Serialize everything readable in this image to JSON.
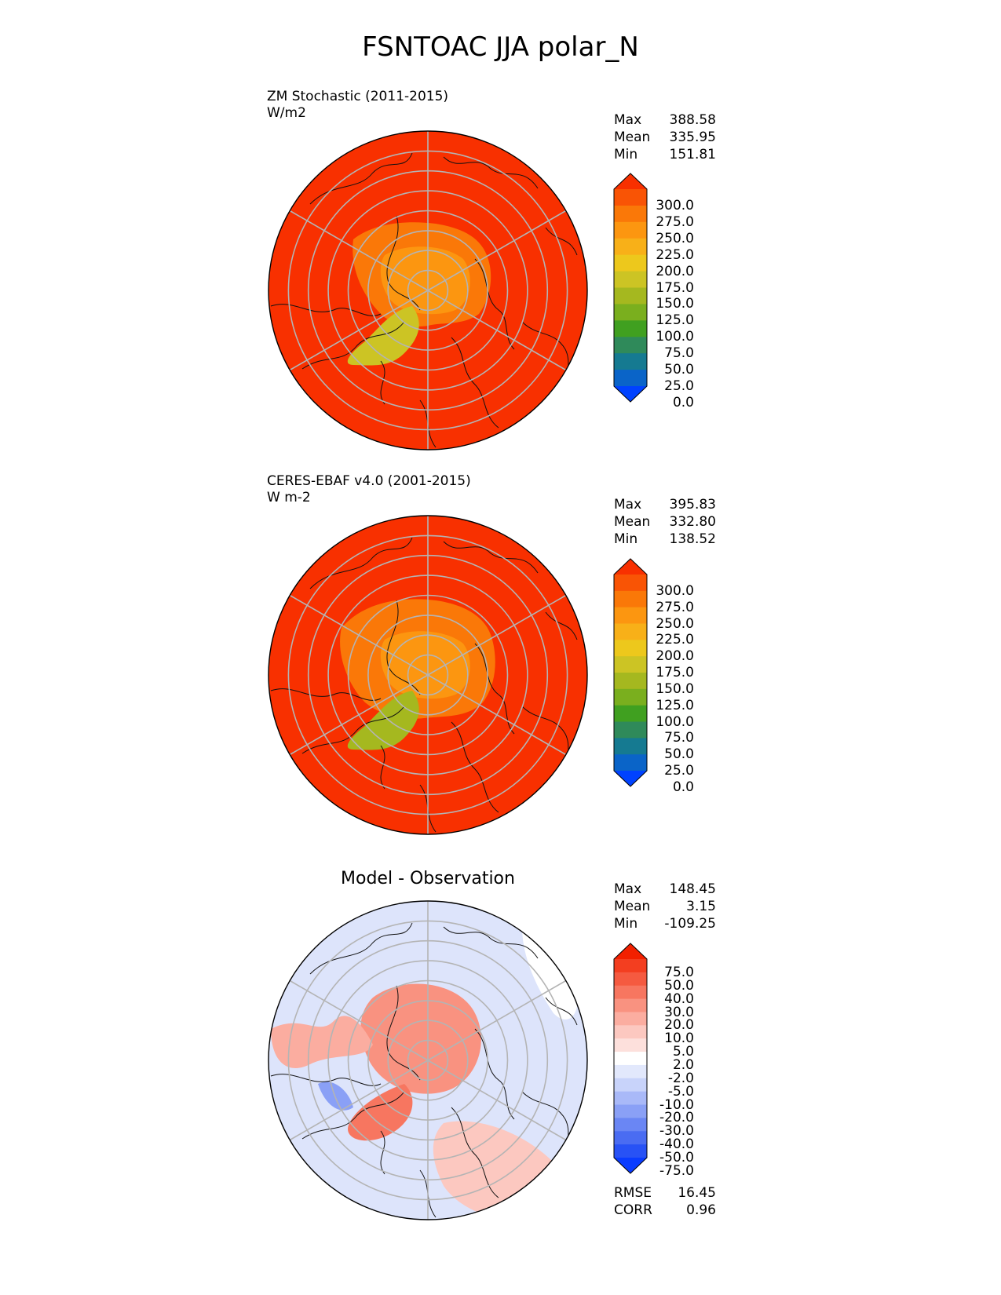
{
  "title": "FSNTOAC JJA polar_N",
  "panels": [
    {
      "id": "model",
      "title_line1": "ZM Stochastic (2011-2015)",
      "title_line2": "W/m2",
      "stats": [
        {
          "label": "Max",
          "value": "388.58"
        },
        {
          "label": "Mean",
          "value": "335.95"
        },
        {
          "label": "Min",
          "value": "151.81"
        }
      ]
    },
    {
      "id": "obs",
      "title_line1": "CERES-EBAF v4.0 (2001-2015)",
      "title_line2": "W m-2",
      "stats": [
        {
          "label": "Max",
          "value": "395.83"
        },
        {
          "label": "Mean",
          "value": "332.80"
        },
        {
          "label": "Min",
          "value": "138.52"
        }
      ]
    },
    {
      "id": "diff",
      "title": "Model - Observation",
      "stats": [
        {
          "label": "Max",
          "value": "148.45"
        },
        {
          "label": "Mean",
          "value": "3.15"
        },
        {
          "label": "Min",
          "value": "-109.25"
        }
      ],
      "metrics": [
        {
          "label": "RMSE",
          "value": "16.45"
        },
        {
          "label": "CORR",
          "value": "0.96"
        }
      ]
    }
  ],
  "chart_data": [
    {
      "type": "heatmap",
      "projection": "north-polar-stereographic",
      "colorbar": {
        "tick_labels": [
          "300.0",
          "275.0",
          "250.0",
          "225.0",
          "200.0",
          "175.0",
          "150.0",
          "125.0",
          "100.0",
          "75.0",
          "50.0",
          "25.0",
          "0.0"
        ],
        "levels": [
          0,
          25,
          50,
          75,
          100,
          125,
          150,
          175,
          200,
          225,
          250,
          275,
          300
        ],
        "extend": "both",
        "colors": [
          "#0042ff",
          "#0a64c8",
          "#157a91",
          "#2f8a5a",
          "#40a020",
          "#7aaf1e",
          "#a5b81f",
          "#ccc424",
          "#edc81c",
          "#f8b018",
          "#fc9610",
          "#fa7808",
          "#f95405",
          "#f83000"
        ]
      }
    },
    {
      "type": "heatmap",
      "projection": "north-polar-stereographic",
      "colorbar": {
        "tick_labels": [
          "300.0",
          "275.0",
          "250.0",
          "225.0",
          "200.0",
          "175.0",
          "150.0",
          "125.0",
          "100.0",
          "75.0",
          "50.0",
          "25.0",
          "0.0"
        ],
        "levels": [
          0,
          25,
          50,
          75,
          100,
          125,
          150,
          175,
          200,
          225,
          250,
          275,
          300
        ],
        "extend": "both",
        "colors": [
          "#0042ff",
          "#0a64c8",
          "#157a91",
          "#2f8a5a",
          "#40a020",
          "#7aaf1e",
          "#a5b81f",
          "#ccc424",
          "#edc81c",
          "#f8b018",
          "#fc9610",
          "#fa7808",
          "#f95405",
          "#f83000"
        ]
      }
    },
    {
      "type": "heatmap",
      "projection": "north-polar-stereographic",
      "colorbar": {
        "tick_labels": [
          "75.0",
          "50.0",
          "40.0",
          "30.0",
          "20.0",
          "10.0",
          "5.0",
          "2.0",
          "-2.0",
          "-5.0",
          "-10.0",
          "-20.0",
          "-30.0",
          "-40.0",
          "-50.0",
          "-75.0"
        ],
        "levels": [
          -75,
          -50,
          -40,
          -30,
          -20,
          -10,
          -5,
          -2,
          2,
          5,
          10,
          20,
          30,
          40,
          50,
          75
        ],
        "extend": "both",
        "colors": [
          "#0a3cff",
          "#2852f5",
          "#4a6cf2",
          "#6a86f4",
          "#8aa0f6",
          "#a9b9f8",
          "#c8d3fa",
          "#e2e8fc",
          "#ffffff",
          "#fde0dc",
          "#fcc8c0",
          "#fbada0",
          "#f99280",
          "#f77660",
          "#f55a40",
          "#f33e20",
          "#f22000"
        ]
      }
    }
  ]
}
